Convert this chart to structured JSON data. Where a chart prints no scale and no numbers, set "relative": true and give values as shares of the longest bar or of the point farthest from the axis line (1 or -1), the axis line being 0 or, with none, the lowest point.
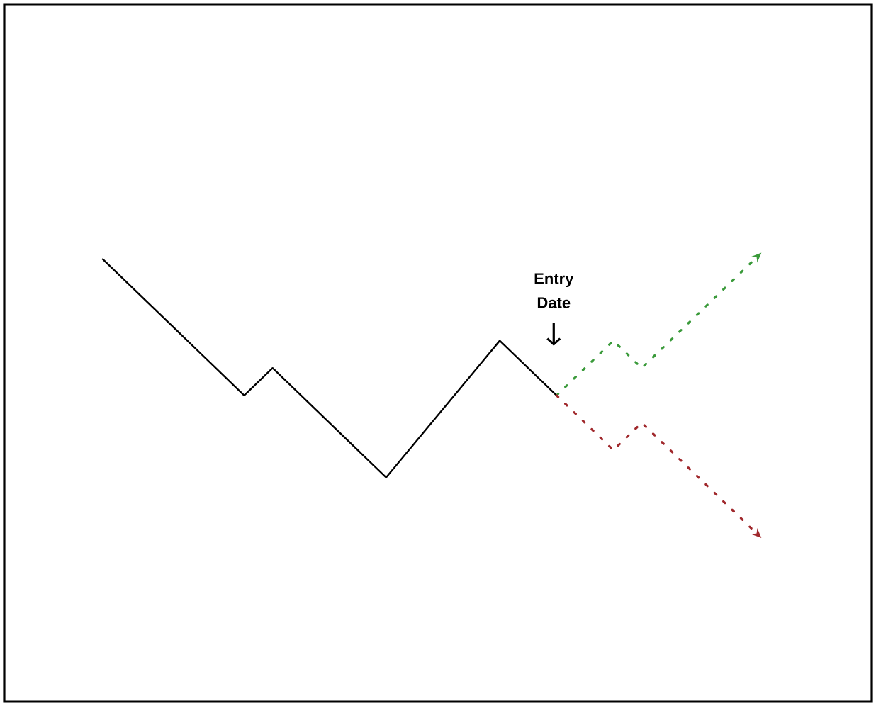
{
  "chart_data": {
    "type": "line",
    "relative": true,
    "tick_labels": false,
    "marker": "none",
    "categories": [
      null,
      null,
      null,
      null,
      null,
      null,
      null,
      null,
      null,
      null,
      null,
      null,
      null,
      null,
      null,
      null,
      null,
      null,
      null,
      null,
      null,
      null,
      null,
      null
    ],
    "series": [
      {
        "color": "#000000",
        "line_style": "solid",
        "values": [
          1.0,
          null,
          null,
          null,
          null,
          0.5,
          0.6,
          null,
          null,
          null,
          0.2,
          null,
          null,
          null,
          0.7,
          null,
          0.5,
          null,
          null,
          null,
          null,
          null,
          null,
          null
        ]
      },
      {
        "color": "#3a9a3a",
        "line_style": "dotted",
        "values": [
          null,
          null,
          null,
          null,
          null,
          null,
          null,
          null,
          null,
          null,
          null,
          null,
          null,
          null,
          null,
          null,
          0.5,
          null,
          0.7,
          0.6,
          null,
          null,
          null,
          1.0
        ]
      },
      {
        "color": "#a0282c",
        "line_style": "dotted",
        "values": [
          null,
          null,
          null,
          null,
          null,
          null,
          null,
          null,
          null,
          null,
          null,
          null,
          null,
          null,
          null,
          null,
          0.5,
          null,
          0.3,
          0.4,
          null,
          null,
          null,
          0.0
        ]
      }
    ],
    "annotations": [
      "Entry Date"
    ]
  }
}
